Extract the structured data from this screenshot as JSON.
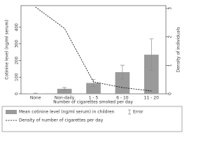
{
  "chart_data": {
    "type": "bar",
    "x_label": "Number of cigarettes smoked per day",
    "y_label": "Cotinine level (ng/ml serum)",
    "y2_label": "Density of individuals",
    "categories": [
      "None",
      "Non-daily",
      "1 - 5",
      "6 - 10",
      "11 - 20"
    ],
    "series": [
      {
        "name": "Mean cotinine level (ng/ml serum) in children",
        "type": "bar",
        "color": "#9a9a9a",
        "values": [
          2,
          30,
          65,
          130,
          235
        ],
        "errors": [
          2,
          8,
          22,
          42,
          95
        ]
      },
      {
        "name": "Density of number of cigarettes per day",
        "type": "line",
        "axis": "y2",
        "color": "#000000",
        "values": [
          3.05,
          2.3,
          0.42,
          0.22,
          0.1
        ]
      }
    ],
    "error_label": "Error",
    "error_color": "#8a8a8a",
    "ylim": [
      0,
      530
    ],
    "yticks": [
      0,
      100,
      200,
      300,
      400
    ],
    "y2lim": [
      0,
      3.1
    ],
    "y2ticks": [
      0,
      1,
      2,
      3
    ]
  }
}
